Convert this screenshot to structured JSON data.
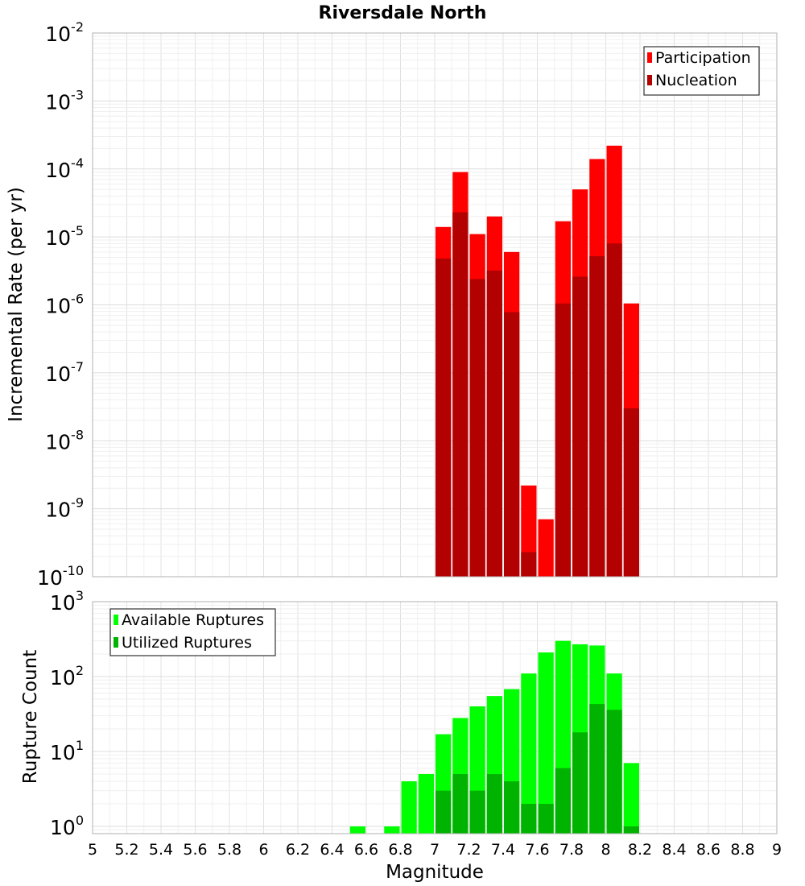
{
  "chart_data": [
    {
      "type": "bar",
      "title": "Riversdale North",
      "xlabel": "",
      "ylabel": "Incremental Rate (per yr)",
      "y_scale": "log",
      "ylim": [
        1e-10,
        0.01
      ],
      "xlim": [
        5,
        9
      ],
      "y_tick_exponents": [
        -10,
        -9,
        -8,
        -7,
        -6,
        -5,
        -4,
        -3,
        -2
      ],
      "bin_width": 0.1,
      "grid": true,
      "legend_position": "top-right",
      "series": [
        {
          "name": "Participation",
          "color": "#ff0000",
          "x": [
            7.05,
            7.15,
            7.25,
            7.35,
            7.45,
            7.55,
            7.65,
            7.75,
            7.85,
            7.95,
            8.05,
            8.15
          ],
          "values": [
            1.4e-05,
            9e-05,
            1.1e-05,
            2e-05,
            6e-06,
            2.2e-09,
            7e-10,
            1.7e-05,
            5e-05,
            0.00014,
            0.00022,
            1.05e-06
          ]
        },
        {
          "name": "Nucleation",
          "color": "#b30000",
          "x": [
            7.05,
            7.15,
            7.25,
            7.35,
            7.45,
            7.55,
            7.65,
            7.75,
            7.85,
            7.95,
            8.05,
            8.15
          ],
          "values": [
            4.8e-06,
            2.3e-05,
            2.4e-06,
            3.2e-06,
            7.8e-07,
            2.3e-10,
            1e-10,
            1.05e-06,
            2.6e-06,
            5.2e-06,
            8e-06,
            3e-08
          ]
        }
      ]
    },
    {
      "type": "bar",
      "title": "",
      "xlabel": "Magnitude",
      "ylabel": "Rupture Count",
      "y_scale": "log",
      "ylim": [
        0.8,
        1000
      ],
      "xlim": [
        5,
        9
      ],
      "y_tick_exponents": [
        0,
        1,
        2,
        3
      ],
      "x_ticks": [
        "5",
        "5.2",
        "5.4",
        "5.6",
        "5.8",
        "6",
        "6.2",
        "6.4",
        "6.6",
        "6.8",
        "7",
        "7.2",
        "7.4",
        "7.6",
        "7.8",
        "8",
        "8.2",
        "8.4",
        "8.6",
        "8.8",
        "9"
      ],
      "bin_width": 0.1,
      "grid": true,
      "legend_position": "top-left",
      "series": [
        {
          "name": "Available Ruptures",
          "color": "#00ff00",
          "x": [
            6.55,
            6.75,
            6.85,
            6.95,
            7.05,
            7.15,
            7.25,
            7.35,
            7.45,
            7.55,
            7.65,
            7.75,
            7.85,
            7.95,
            8.05,
            8.15
          ],
          "values": [
            1,
            1,
            4,
            5,
            17,
            28,
            40,
            55,
            68,
            110,
            210,
            300,
            270,
            260,
            110,
            7
          ]
        },
        {
          "name": "Utilized Ruptures",
          "color": "#00b300",
          "x": [
            7.05,
            7.15,
            7.25,
            7.35,
            7.45,
            7.55,
            7.65,
            7.75,
            7.85,
            7.95,
            8.05,
            8.15
          ],
          "values": [
            3,
            5,
            3,
            5,
            4,
            2,
            2,
            6,
            18,
            43,
            36,
            1
          ]
        }
      ]
    }
  ]
}
